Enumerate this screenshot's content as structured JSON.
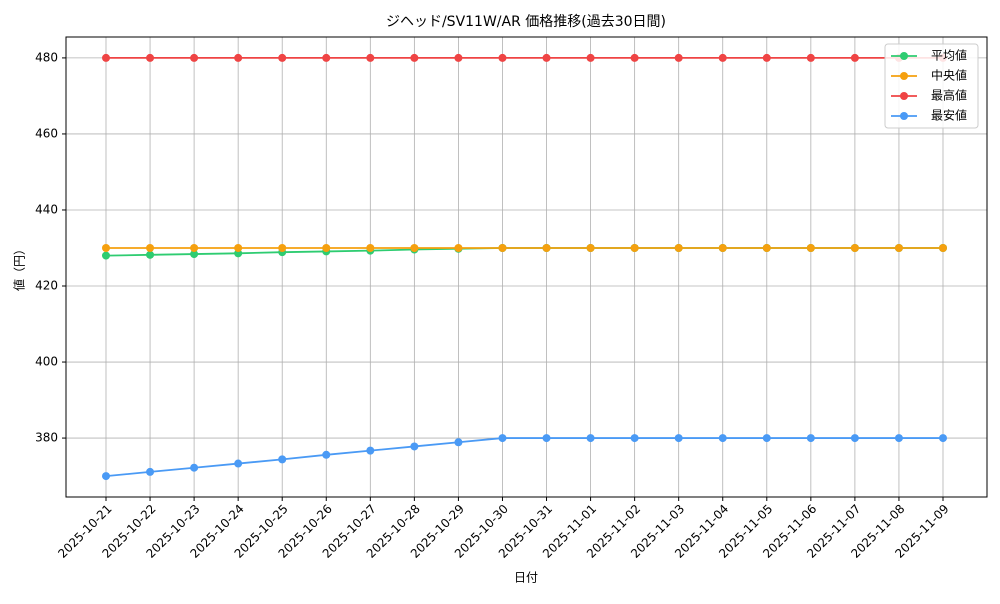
{
  "chart_data": {
    "type": "line",
    "title": "ジヘッド/SV11W/AR 価格推移(過去30日間)",
    "x_label": "日付",
    "y_label": "値（円）",
    "categories": [
      "2025-10-21",
      "2025-10-22",
      "2025-10-23",
      "2025-10-24",
      "2025-10-25",
      "2025-10-26",
      "2025-10-27",
      "2025-10-28",
      "2025-10-29",
      "2025-10-30",
      "2025-10-31",
      "2025-11-01",
      "2025-11-02",
      "2025-11-03",
      "2025-11-04",
      "2025-11-05",
      "2025-11-06",
      "2025-11-07",
      "2025-11-08",
      "2025-11-09"
    ],
    "series": [
      {
        "name": "平均値",
        "color": "#2ecc71",
        "values": [
          428.0,
          428.2,
          428.4,
          428.6,
          428.9,
          429.1,
          429.3,
          429.6,
          429.8,
          430,
          430,
          430,
          430,
          430,
          430,
          430,
          430,
          430,
          430,
          430
        ]
      },
      {
        "name": "中央値",
        "color": "#f5a00f",
        "values": [
          430,
          430,
          430,
          430,
          430,
          430,
          430,
          430,
          430,
          430,
          430,
          430,
          430,
          430,
          430,
          430,
          430,
          430,
          430,
          430
        ]
      },
      {
        "name": "最高値",
        "color": "#ef4444",
        "values": [
          480,
          480,
          480,
          480,
          480,
          480,
          480,
          480,
          480,
          480,
          480,
          480,
          480,
          480,
          480,
          480,
          480,
          480,
          480,
          480
        ]
      },
      {
        "name": "最安値",
        "color": "#4a9af5",
        "values": [
          370,
          371.1,
          372.2,
          373.3,
          374.4,
          375.6,
          376.7,
          377.8,
          378.9,
          380,
          380,
          380,
          380,
          380,
          380,
          380,
          380,
          380,
          380,
          380
        ]
      }
    ],
    "ylim": [
      364.5,
      485.5
    ],
    "yticks": [
      380,
      400,
      420,
      440,
      460,
      480
    ],
    "grid": true,
    "legend": "upper right"
  }
}
